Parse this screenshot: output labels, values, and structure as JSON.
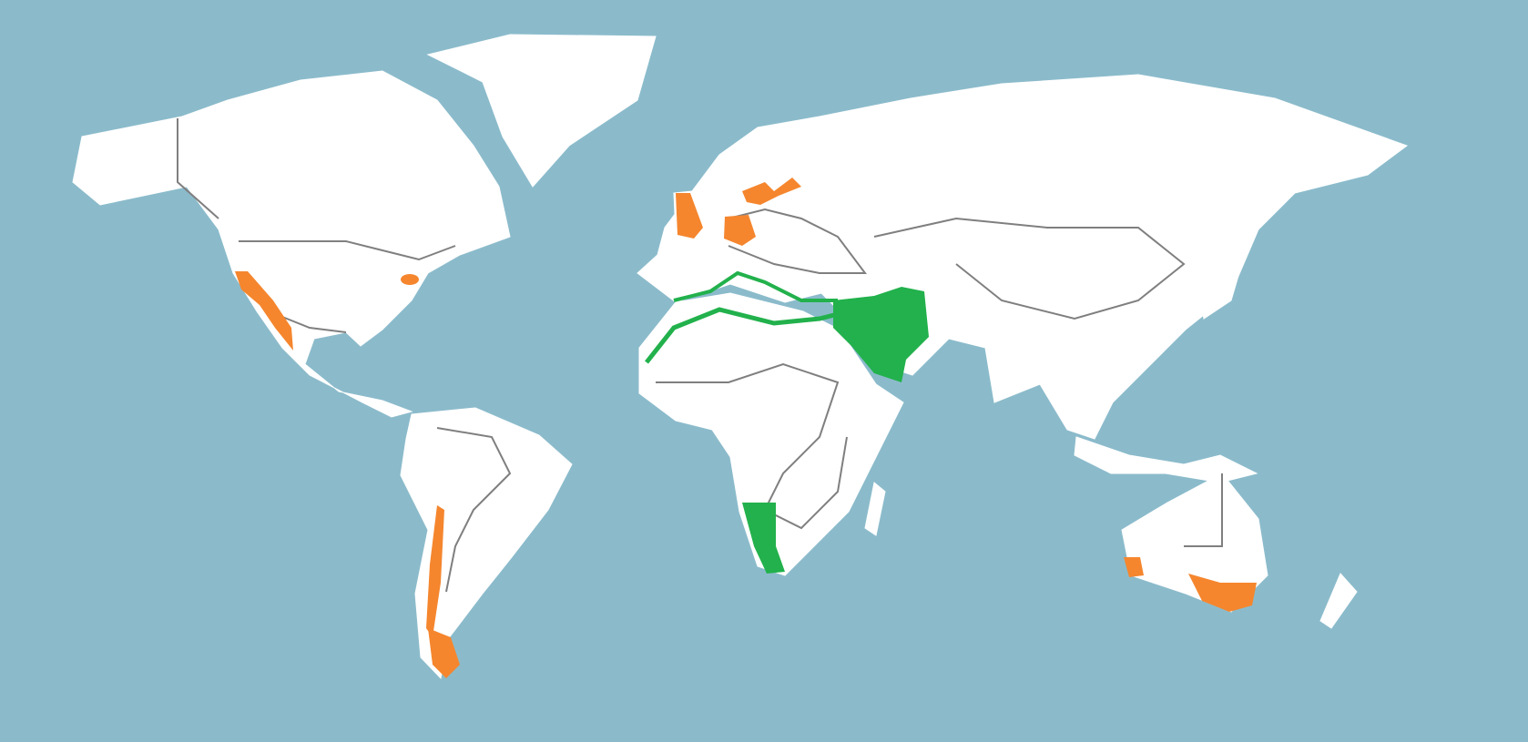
{
  "map": {
    "colors": {
      "ocean": "#8bbbcb",
      "land": "#ffffff",
      "border": "#7f7f7f",
      "highlight_orange": "#f5862e",
      "highlight_green": "#22b14c"
    }
  }
}
